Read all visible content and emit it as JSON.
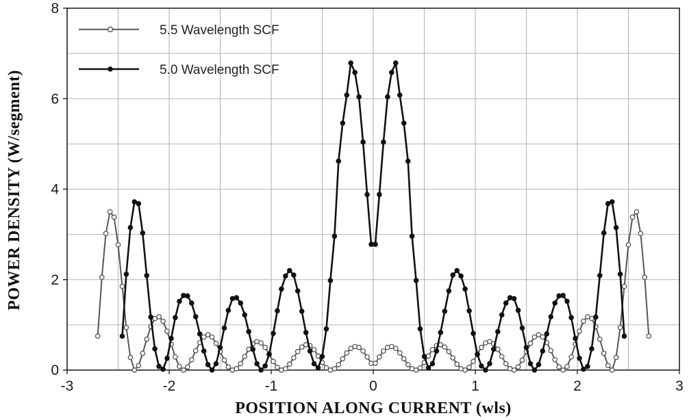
{
  "chart_data": {
    "type": "line",
    "title": "",
    "xlabel": "POSITION ALONG CURRENT (wls)",
    "ylabel": "POWER DENSITY (W/segment)",
    "xlim": [
      -3,
      3
    ],
    "ylim": [
      0,
      8
    ],
    "xticks": [
      "-3",
      "-2",
      "-1",
      "0",
      "1",
      "2",
      "3"
    ],
    "yticks": [
      "0",
      "2",
      "4",
      "6",
      "8"
    ],
    "grid": true,
    "legend": "top-left",
    "series": [
      {
        "name": "5.5 Wavelength SCF",
        "marker": "open-circle",
        "color": "#555555",
        "x": [
          -2.7,
          -2.66,
          -2.62,
          -2.58,
          -2.54,
          -2.5,
          -2.46,
          -2.42,
          -2.38,
          -2.34,
          -2.3,
          -2.26,
          -2.22,
          -2.18,
          -2.14,
          -2.1,
          -2.06,
          -2.02,
          -1.98,
          -1.94,
          -1.9,
          -1.86,
          -1.82,
          -1.78,
          -1.74,
          -1.7,
          -1.66,
          -1.62,
          -1.58,
          -1.54,
          -1.5,
          -1.46,
          -1.42,
          -1.38,
          -1.34,
          -1.3,
          -1.26,
          -1.22,
          -1.18,
          -1.14,
          -1.1,
          -1.06,
          -1.02,
          -0.98,
          -0.94,
          -0.9,
          -0.86,
          -0.82,
          -0.78,
          -0.74,
          -0.7,
          -0.66,
          -0.62,
          -0.58,
          -0.54,
          -0.5,
          -0.46,
          -0.42,
          -0.38,
          -0.34,
          -0.3,
          -0.26,
          -0.22,
          -0.18,
          -0.14,
          -0.1,
          -0.06,
          -0.02,
          0.02,
          0.06,
          0.1,
          0.14,
          0.18,
          0.22,
          0.26,
          0.3,
          0.34,
          0.38,
          0.42,
          0.46,
          0.5,
          0.54,
          0.58,
          0.62,
          0.66,
          0.7,
          0.74,
          0.78,
          0.82,
          0.86,
          0.9,
          0.94,
          0.98,
          1.02,
          1.06,
          1.1,
          1.14,
          1.18,
          1.22,
          1.26,
          1.3,
          1.34,
          1.38,
          1.42,
          1.46,
          1.5,
          1.54,
          1.58,
          1.62,
          1.66,
          1.7,
          1.74,
          1.78,
          1.82,
          1.86,
          1.9,
          1.94,
          1.98,
          2.02,
          2.06,
          2.1,
          2.14,
          2.18,
          2.22,
          2.26,
          2.3,
          2.34,
          2.38,
          2.42,
          2.46,
          2.5,
          2.54,
          2.58,
          2.62,
          2.66,
          2.7
        ],
        "y": [
          0.75,
          2.05,
          3.02,
          3.5,
          3.38,
          2.77,
          1.85,
          0.94,
          0.28,
          0.0,
          0.1,
          0.37,
          0.68,
          0.96,
          1.14,
          1.18,
          1.08,
          0.86,
          0.57,
          0.29,
          0.08,
          0.0,
          0.07,
          0.23,
          0.43,
          0.61,
          0.73,
          0.78,
          0.73,
          0.59,
          0.41,
          0.22,
          0.07,
          0.0,
          0.03,
          0.14,
          0.3,
          0.46,
          0.58,
          0.63,
          0.6,
          0.5,
          0.35,
          0.19,
          0.06,
          0.0,
          0.03,
          0.13,
          0.27,
          0.41,
          0.51,
          0.56,
          0.54,
          0.45,
          0.31,
          0.17,
          0.05,
          0.0,
          0.03,
          0.12,
          0.25,
          0.38,
          0.48,
          0.52,
          0.5,
          0.42,
          0.29,
          0.15,
          0.15,
          0.29,
          0.42,
          0.5,
          0.52,
          0.48,
          0.38,
          0.25,
          0.12,
          0.03,
          0.0,
          0.05,
          0.17,
          0.31,
          0.45,
          0.54,
          0.56,
          0.51,
          0.41,
          0.27,
          0.13,
          0.03,
          0.0,
          0.06,
          0.19,
          0.35,
          0.5,
          0.6,
          0.63,
          0.58,
          0.46,
          0.3,
          0.14,
          0.03,
          0.0,
          0.07,
          0.22,
          0.41,
          0.59,
          0.73,
          0.78,
          0.73,
          0.61,
          0.43,
          0.23,
          0.07,
          0.0,
          0.08,
          0.29,
          0.57,
          0.86,
          1.08,
          1.18,
          1.14,
          0.96,
          0.68,
          0.37,
          0.1,
          0.0,
          0.28,
          0.94,
          1.85,
          2.77,
          3.38,
          3.5,
          3.02,
          2.05,
          0.75
        ]
      },
      {
        "name": "5.0 Wavelength SCF",
        "marker": "filled-circle",
        "color": "#111111",
        "x": [
          -2.46,
          -2.42,
          -2.38,
          -2.34,
          -2.3,
          -2.26,
          -2.22,
          -2.18,
          -2.14,
          -2.1,
          -2.06,
          -2.02,
          -1.98,
          -1.94,
          -1.9,
          -1.86,
          -1.82,
          -1.78,
          -1.74,
          -1.7,
          -1.66,
          -1.62,
          -1.58,
          -1.54,
          -1.5,
          -1.46,
          -1.42,
          -1.38,
          -1.34,
          -1.3,
          -1.26,
          -1.22,
          -1.18,
          -1.14,
          -1.1,
          -1.06,
          -1.02,
          -0.98,
          -0.94,
          -0.9,
          -0.86,
          -0.82,
          -0.78,
          -0.74,
          -0.7,
          -0.66,
          -0.62,
          -0.58,
          -0.54,
          -0.5,
          -0.46,
          -0.42,
          -0.38,
          -0.34,
          -0.3,
          -0.26,
          -0.22,
          -0.18,
          -0.14,
          -0.1,
          -0.06,
          -0.02,
          0.02,
          0.06,
          0.1,
          0.14,
          0.18,
          0.22,
          0.26,
          0.3,
          0.34,
          0.38,
          0.42,
          0.46,
          0.5,
          0.54,
          0.58,
          0.62,
          0.66,
          0.7,
          0.74,
          0.78,
          0.82,
          0.86,
          0.9,
          0.94,
          0.98,
          1.02,
          1.06,
          1.1,
          1.14,
          1.18,
          1.22,
          1.26,
          1.3,
          1.34,
          1.38,
          1.42,
          1.46,
          1.5,
          1.54,
          1.58,
          1.62,
          1.66,
          1.7,
          1.74,
          1.78,
          1.82,
          1.86,
          1.9,
          1.94,
          1.98,
          2.02,
          2.06,
          2.1,
          2.14,
          2.18,
          2.22,
          2.26,
          2.3,
          2.34,
          2.38,
          2.42,
          2.46
        ],
        "y": [
          0.75,
          2.12,
          3.15,
          3.72,
          3.68,
          3.03,
          2.09,
          1.17,
          0.47,
          0.08,
          0.02,
          0.26,
          0.7,
          1.16,
          1.52,
          1.65,
          1.64,
          1.48,
          1.18,
          0.8,
          0.42,
          0.12,
          0.0,
          0.14,
          0.5,
          0.93,
          1.32,
          1.58,
          1.6,
          1.48,
          1.22,
          0.85,
          0.46,
          0.14,
          0.0,
          0.09,
          0.35,
          0.81,
          1.31,
          1.79,
          2.08,
          2.2,
          2.1,
          1.75,
          1.3,
          0.83,
          0.42,
          0.14,
          0.05,
          0.3,
          0.91,
          1.98,
          2.96,
          4.62,
          5.46,
          6.08,
          6.79,
          6.58,
          6.04,
          5.04,
          3.88,
          2.78,
          2.78,
          3.88,
          5.04,
          6.04,
          6.58,
          6.79,
          6.08,
          5.46,
          4.62,
          2.96,
          1.98,
          0.91,
          0.3,
          0.05,
          0.14,
          0.42,
          0.83,
          1.3,
          1.75,
          2.1,
          2.2,
          2.08,
          1.79,
          1.31,
          0.81,
          0.35,
          0.09,
          0.0,
          0.14,
          0.46,
          0.85,
          1.22,
          1.48,
          1.6,
          1.58,
          1.32,
          0.93,
          0.5,
          0.14,
          0.0,
          0.12,
          0.42,
          0.8,
          1.18,
          1.48,
          1.64,
          1.65,
          1.52,
          1.16,
          0.7,
          0.26,
          0.02,
          0.08,
          0.47,
          1.17,
          2.09,
          3.03,
          3.68,
          3.72,
          3.15,
          2.12,
          0.75
        ]
      }
    ]
  }
}
